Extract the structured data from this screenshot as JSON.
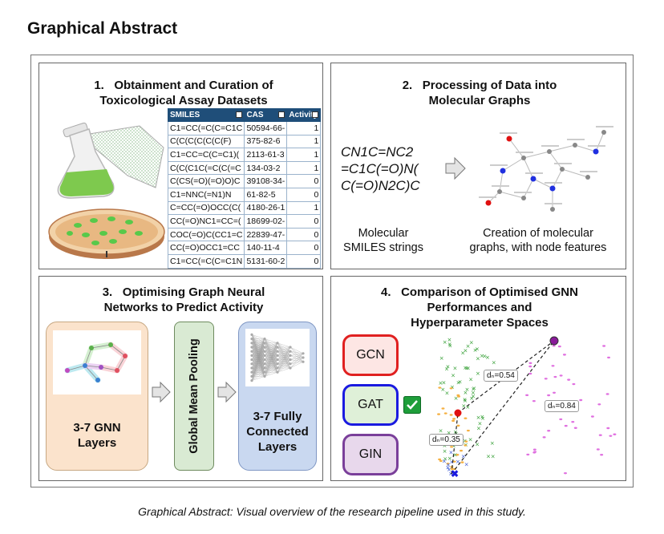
{
  "page_title": "Graphical Abstract",
  "caption": "Graphical Abstract: Visual overview of the research pipeline used in this study.",
  "panel1": {
    "number": "1.",
    "title_line1": "Obtainment and Curation of",
    "title_line2": "Toxicological Assay Datasets",
    "table": {
      "headers": [
        "SMILES",
        "CAS",
        "Activity"
      ],
      "rows": [
        [
          "C1=CC(=C(C=C1C",
          "50594-66-",
          "1"
        ],
        [
          "C(C(C(C(C(C(F)",
          "375-82-6",
          "1"
        ],
        [
          "C1=CC=C(C=C1)(",
          "2113-61-3",
          "1"
        ],
        [
          "C(C(C1C(=C(C(=C",
          "134-03-2",
          "1"
        ],
        [
          "C(CS(=O)(=O)O)C",
          "39108-34-",
          "0"
        ],
        [
          "C1=NNC(=N1)N",
          "61-82-5",
          "0"
        ],
        [
          "C=CC(=O)OCC(C(",
          "4180-26-1",
          "1"
        ],
        [
          "CC(=O)NC1=CC=(",
          "18699-02-",
          "0"
        ],
        [
          "COC(=O)C(CC1=C",
          "22839-47-",
          "0"
        ],
        [
          "CC(=O)OCC1=CC",
          "140-11-4",
          "0"
        ],
        [
          "C1=CC(=C(C=C1N",
          "5131-60-2",
          "0"
        ]
      ]
    }
  },
  "panel2": {
    "number": "2.",
    "title_line1": "Processing of Data into",
    "title_line2": "Molecular Graphs",
    "smiles_lines": [
      "CN1C=NC2",
      "=C1C(=O)N(",
      "C(=O)N2C)C"
    ],
    "left_label_line1": "Molecular",
    "left_label_line2": "SMILES strings",
    "right_label_line1": "Creation of molecular",
    "right_label_line2": "graphs, with node features"
  },
  "panel3": {
    "number": "3.",
    "title_line1": "Optimising Graph Neural",
    "title_line2": "Networks to Predict Activity",
    "box1_line1": "3-7 GNN",
    "box1_line2": "Layers",
    "pooling": "Global Mean Pooling",
    "box3_line1": "3-7 Fully",
    "box3_line2": "Connected",
    "box3_line3": "Layers"
  },
  "panel4": {
    "number": "4.",
    "title_line1": "Comparison of Optimised GNN",
    "title_line2": "Performances and",
    "title_line3": "Hyperparameter Spaces",
    "models": [
      {
        "label": "GCN",
        "border": "#e02020",
        "fill": "#fde6e4"
      },
      {
        "label": "GAT",
        "border": "#1a1ae0",
        "fill": "#dff0d8"
      },
      {
        "label": "GIN",
        "border": "#7a3f9a",
        "fill": "#e8d8ec"
      }
    ],
    "distances": [
      "dₙ=0.54",
      "dₙ=0.84",
      "dₙ=0.35"
    ]
  },
  "colors": {
    "box1_fill": "#fbe3cc",
    "box1_border": "#c7a883",
    "pool_fill": "#d9ead3",
    "pool_border": "#6e8b5e",
    "box3_fill": "#c9d8f0",
    "box3_border": "#7f97c4",
    "check_green": "#1e9e3a"
  }
}
